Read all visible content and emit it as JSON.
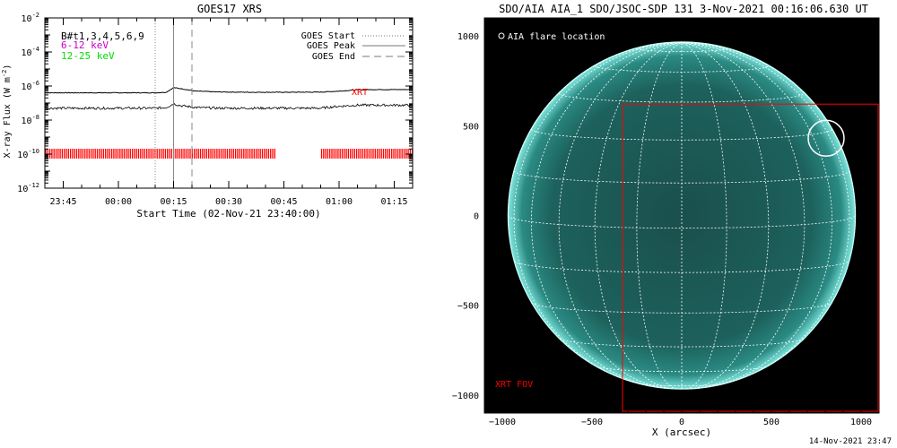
{
  "left_panel": {
    "title": "GOES17 XRS",
    "ylabel_main": "X-ray Flux (W m",
    "ylabel_exp": "-2",
    "ylabel_close": ")",
    "xlabel": "Start Time (02-Nov-21 23:40:00)",
    "channel_labels": [
      {
        "text": "B#t1,3,4,5,6,9",
        "color": "#000000"
      },
      {
        "text": "6-12 keV",
        "color": "#cc00cc"
      },
      {
        "text": "12-25 keV",
        "color": "#00dd00"
      }
    ],
    "legend": [
      {
        "label": "GOES Start",
        "style": "dotted"
      },
      {
        "label": "GOES Peak",
        "style": "solid"
      },
      {
        "label": "GOES End",
        "style": "dashed"
      }
    ],
    "xrt_label": "XRT",
    "accent_red": "#ff0000"
  },
  "right_panel": {
    "title": "SDO/AIA AIA_1 SDO/JSOC-SDP 131  3-Nov-2021 00:16:06.630 UT",
    "flare_legend": "AIA flare location",
    "xrt_fov_label": "XRT FOV",
    "xlabel": "X (arcsec)",
    "disk_color": "#1e6f6a"
  },
  "footer": {
    "timestamp": "14-Nov-2021 23:47"
  },
  "chart_data": [
    {
      "type": "line",
      "title": "GOES17 XRS",
      "xlabel": "Start Time (02-Nov-21 23:40:00)",
      "ylabel": "X-ray Flux (W m^-2)",
      "y_scale": "log",
      "ylim": [
        1e-12,
        0.01
      ],
      "yticks": [
        {
          "value": 1e-12,
          "label": "10",
          "exp": "-12"
        },
        {
          "value": 1e-10,
          "label": "10",
          "exp": "-10"
        },
        {
          "value": 1e-08,
          "label": "10",
          "exp": "-8"
        },
        {
          "value": 1e-06,
          "label": "10",
          "exp": "-6"
        },
        {
          "value": 0.0001,
          "label": "10",
          "exp": "-4"
        },
        {
          "value": 0.01,
          "label": "10",
          "exp": "-2"
        }
      ],
      "xlim": [
        "23:40",
        "01:20"
      ],
      "xticks": [
        "23:45",
        "00:00",
        "00:15",
        "00:30",
        "00:45",
        "01:00",
        "01:15"
      ],
      "series": [
        {
          "name": "",
          "x": [
            "23:40",
            "00:10",
            "00:13",
            "00:15",
            "00:17",
            "00:21",
            "00:27",
            "00:35",
            "00:45",
            "00:55",
            "01:00",
            "01:05",
            "01:10",
            "01:20"
          ],
          "values": [
            4e-07,
            4e-07,
            4.3e-07,
            8e-07,
            7e-07,
            5e-07,
            4.5e-07,
            4.3e-07,
            4.3e-07,
            4.4e-07,
            5e-07,
            6e-07,
            6.2e-07,
            6.2e-07
          ]
        },
        {
          "name": "",
          "x": [
            "23:40",
            "00:10",
            "00:13",
            "00:15",
            "00:17",
            "00:21",
            "00:27",
            "00:35",
            "00:45",
            "00:55",
            "01:00",
            "01:05",
            "01:10",
            "01:20"
          ],
          "values": [
            5e-08,
            5e-08,
            5.5e-08,
            9e-08,
            7e-08,
            5.5e-08,
            5e-08,
            5e-08,
            5e-08,
            5e-08,
            6.5e-08,
            7.5e-08,
            7.5e-08,
            7.5e-08
          ]
        }
      ],
      "vlines": [
        {
          "name": "GOES Start",
          "x": "00:10",
          "style": "dotted"
        },
        {
          "name": "GOES Peak",
          "x": "00:15",
          "style": "solid"
        },
        {
          "name": "GOES End",
          "x": "00:20",
          "style": "dashed"
        }
      ],
      "xrt_coverage": {
        "level": 1e-10,
        "intervals": [
          [
            "23:40",
            "00:43"
          ],
          [
            "00:55",
            "01:20"
          ]
        ]
      }
    },
    {
      "type": "image",
      "title": "SDO/AIA AIA_1 SDO/JSOC-SDP 131  3-Nov-2021 00:16:06.630 UT",
      "xlabel": "X (arcsec)",
      "xlim": [
        -1100,
        1100
      ],
      "ylim": [
        -1100,
        1100
      ],
      "xticks": [
        -1000,
        -500,
        0,
        500,
        1000
      ],
      "yticks": [
        -1000,
        -500,
        0,
        500,
        1000
      ],
      "solar_radius_arcsec": 968,
      "flare_location": {
        "x": 805,
        "y": 430,
        "radius": 100
      },
      "xrt_fov": {
        "x0": -330,
        "x1": 1100,
        "y0": -1100,
        "y1": 620
      }
    }
  ]
}
